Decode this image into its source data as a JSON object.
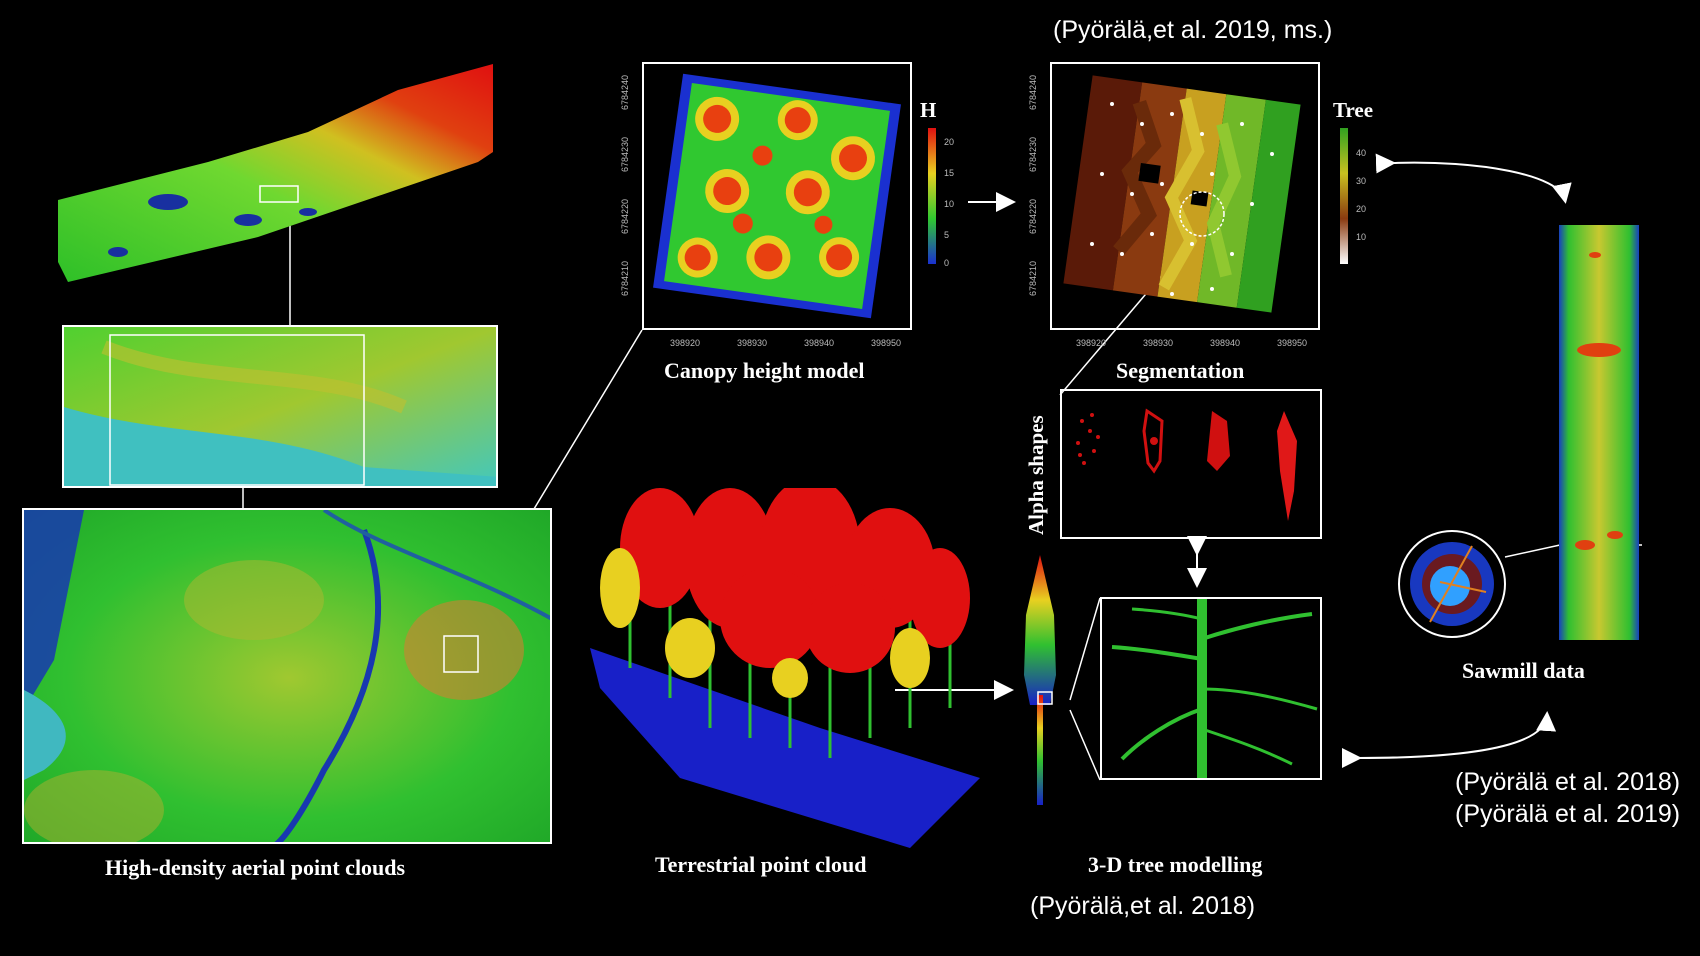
{
  "captions": {
    "aerial": "High-density aerial point clouds",
    "chm": "Canopy height model",
    "segmentation": "Segmentation",
    "alpha": "Alpha shapes",
    "terrestrial": "Terrestrial point cloud",
    "tree_modelling": "3-D tree modelling",
    "sawmill": "Sawmill data"
  },
  "references": {
    "top": "(Pyörälä,et al. 2019, ms.)",
    "bottom": "(Pyörälä,et al. 2018)",
    "right_1": "(Pyörälä et al. 2018)",
    "right_2": "(Pyörälä et al. 2019)"
  },
  "chm_plot": {
    "legend_title": "H",
    "legend_ticks": [
      "20",
      "15",
      "10",
      "5",
      "0"
    ],
    "x_ticks": [
      "398920",
      "398930",
      "398940",
      "398950"
    ],
    "y_ticks": [
      "6784240",
      "6784230",
      "6784220",
      "6784210"
    ]
  },
  "seg_plot": {
    "legend_title": "Tree",
    "legend_ticks": [
      "40",
      "30",
      "20",
      "10"
    ],
    "x_ticks": [
      "398920",
      "398930",
      "398940",
      "398950"
    ],
    "y_ticks": [
      "6784240",
      "6784230",
      "6784220",
      "6784210"
    ]
  },
  "colors": {
    "background": "#000000",
    "point_red": "#e01010",
    "point_green": "#30c020",
    "point_blue": "#1020c0",
    "point_yellow": "#e8d020"
  }
}
